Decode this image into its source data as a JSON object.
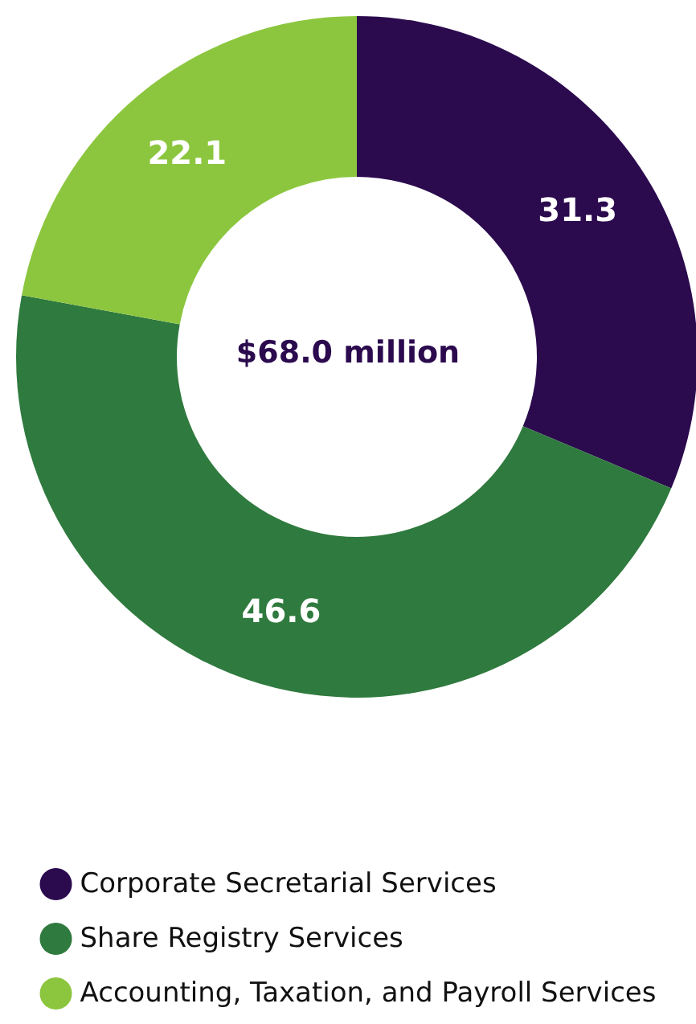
{
  "chart_data": {
    "type": "donut",
    "categories": [
      "Corporate Secretarial Services",
      "Share Registry Services",
      "Accounting, Taxation, and Payroll Services"
    ],
    "values": [
      31.3,
      46.6,
      22.1
    ],
    "colors": [
      "#2b0a4e",
      "#2f7a3e",
      "#8cc63f"
    ],
    "data_labels": true,
    "legend": "bottom",
    "annotations": [
      "$68.0 million"
    ]
  }
}
